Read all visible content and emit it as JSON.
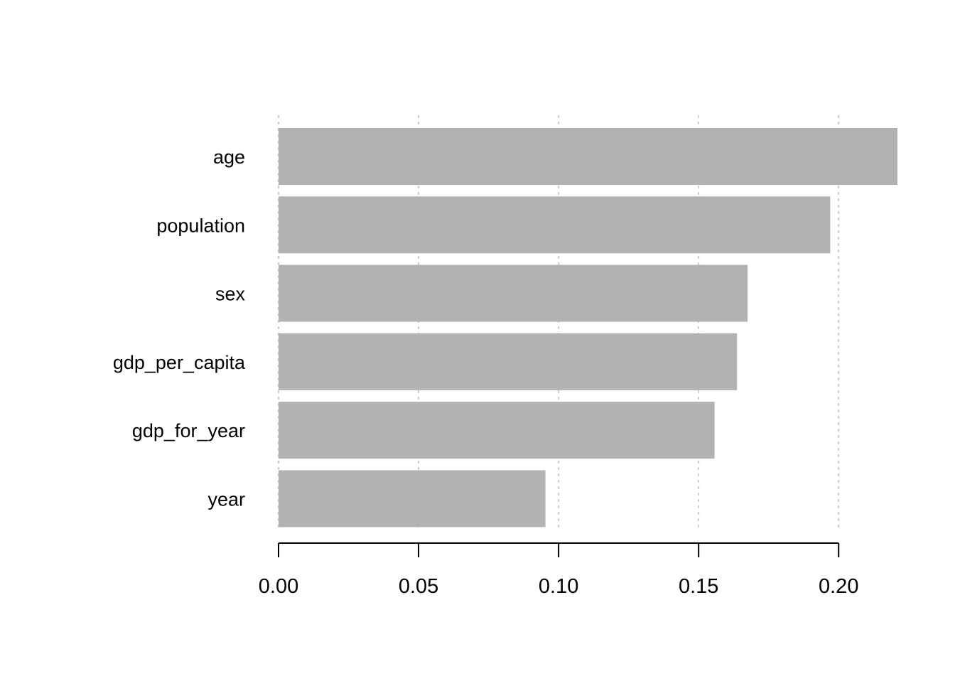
{
  "chart_data": {
    "type": "bar",
    "orientation": "horizontal",
    "categories": [
      "age",
      "population",
      "sex",
      "gdp_per_capita",
      "gdp_for_year",
      "year"
    ],
    "values": [
      0.221,
      0.197,
      0.1675,
      0.1637,
      0.1557,
      0.0953
    ],
    "title": "",
    "xlabel": "",
    "ylabel": "",
    "xlim": [
      0,
      0.221
    ],
    "x_ticks": [
      "0.00",
      "0.05",
      "0.10",
      "0.15",
      "0.20"
    ],
    "grid": "vertical dashed",
    "bar_color": "#b2b2b2",
    "grid_color": "#cccccc",
    "axis_color": "#000000"
  }
}
